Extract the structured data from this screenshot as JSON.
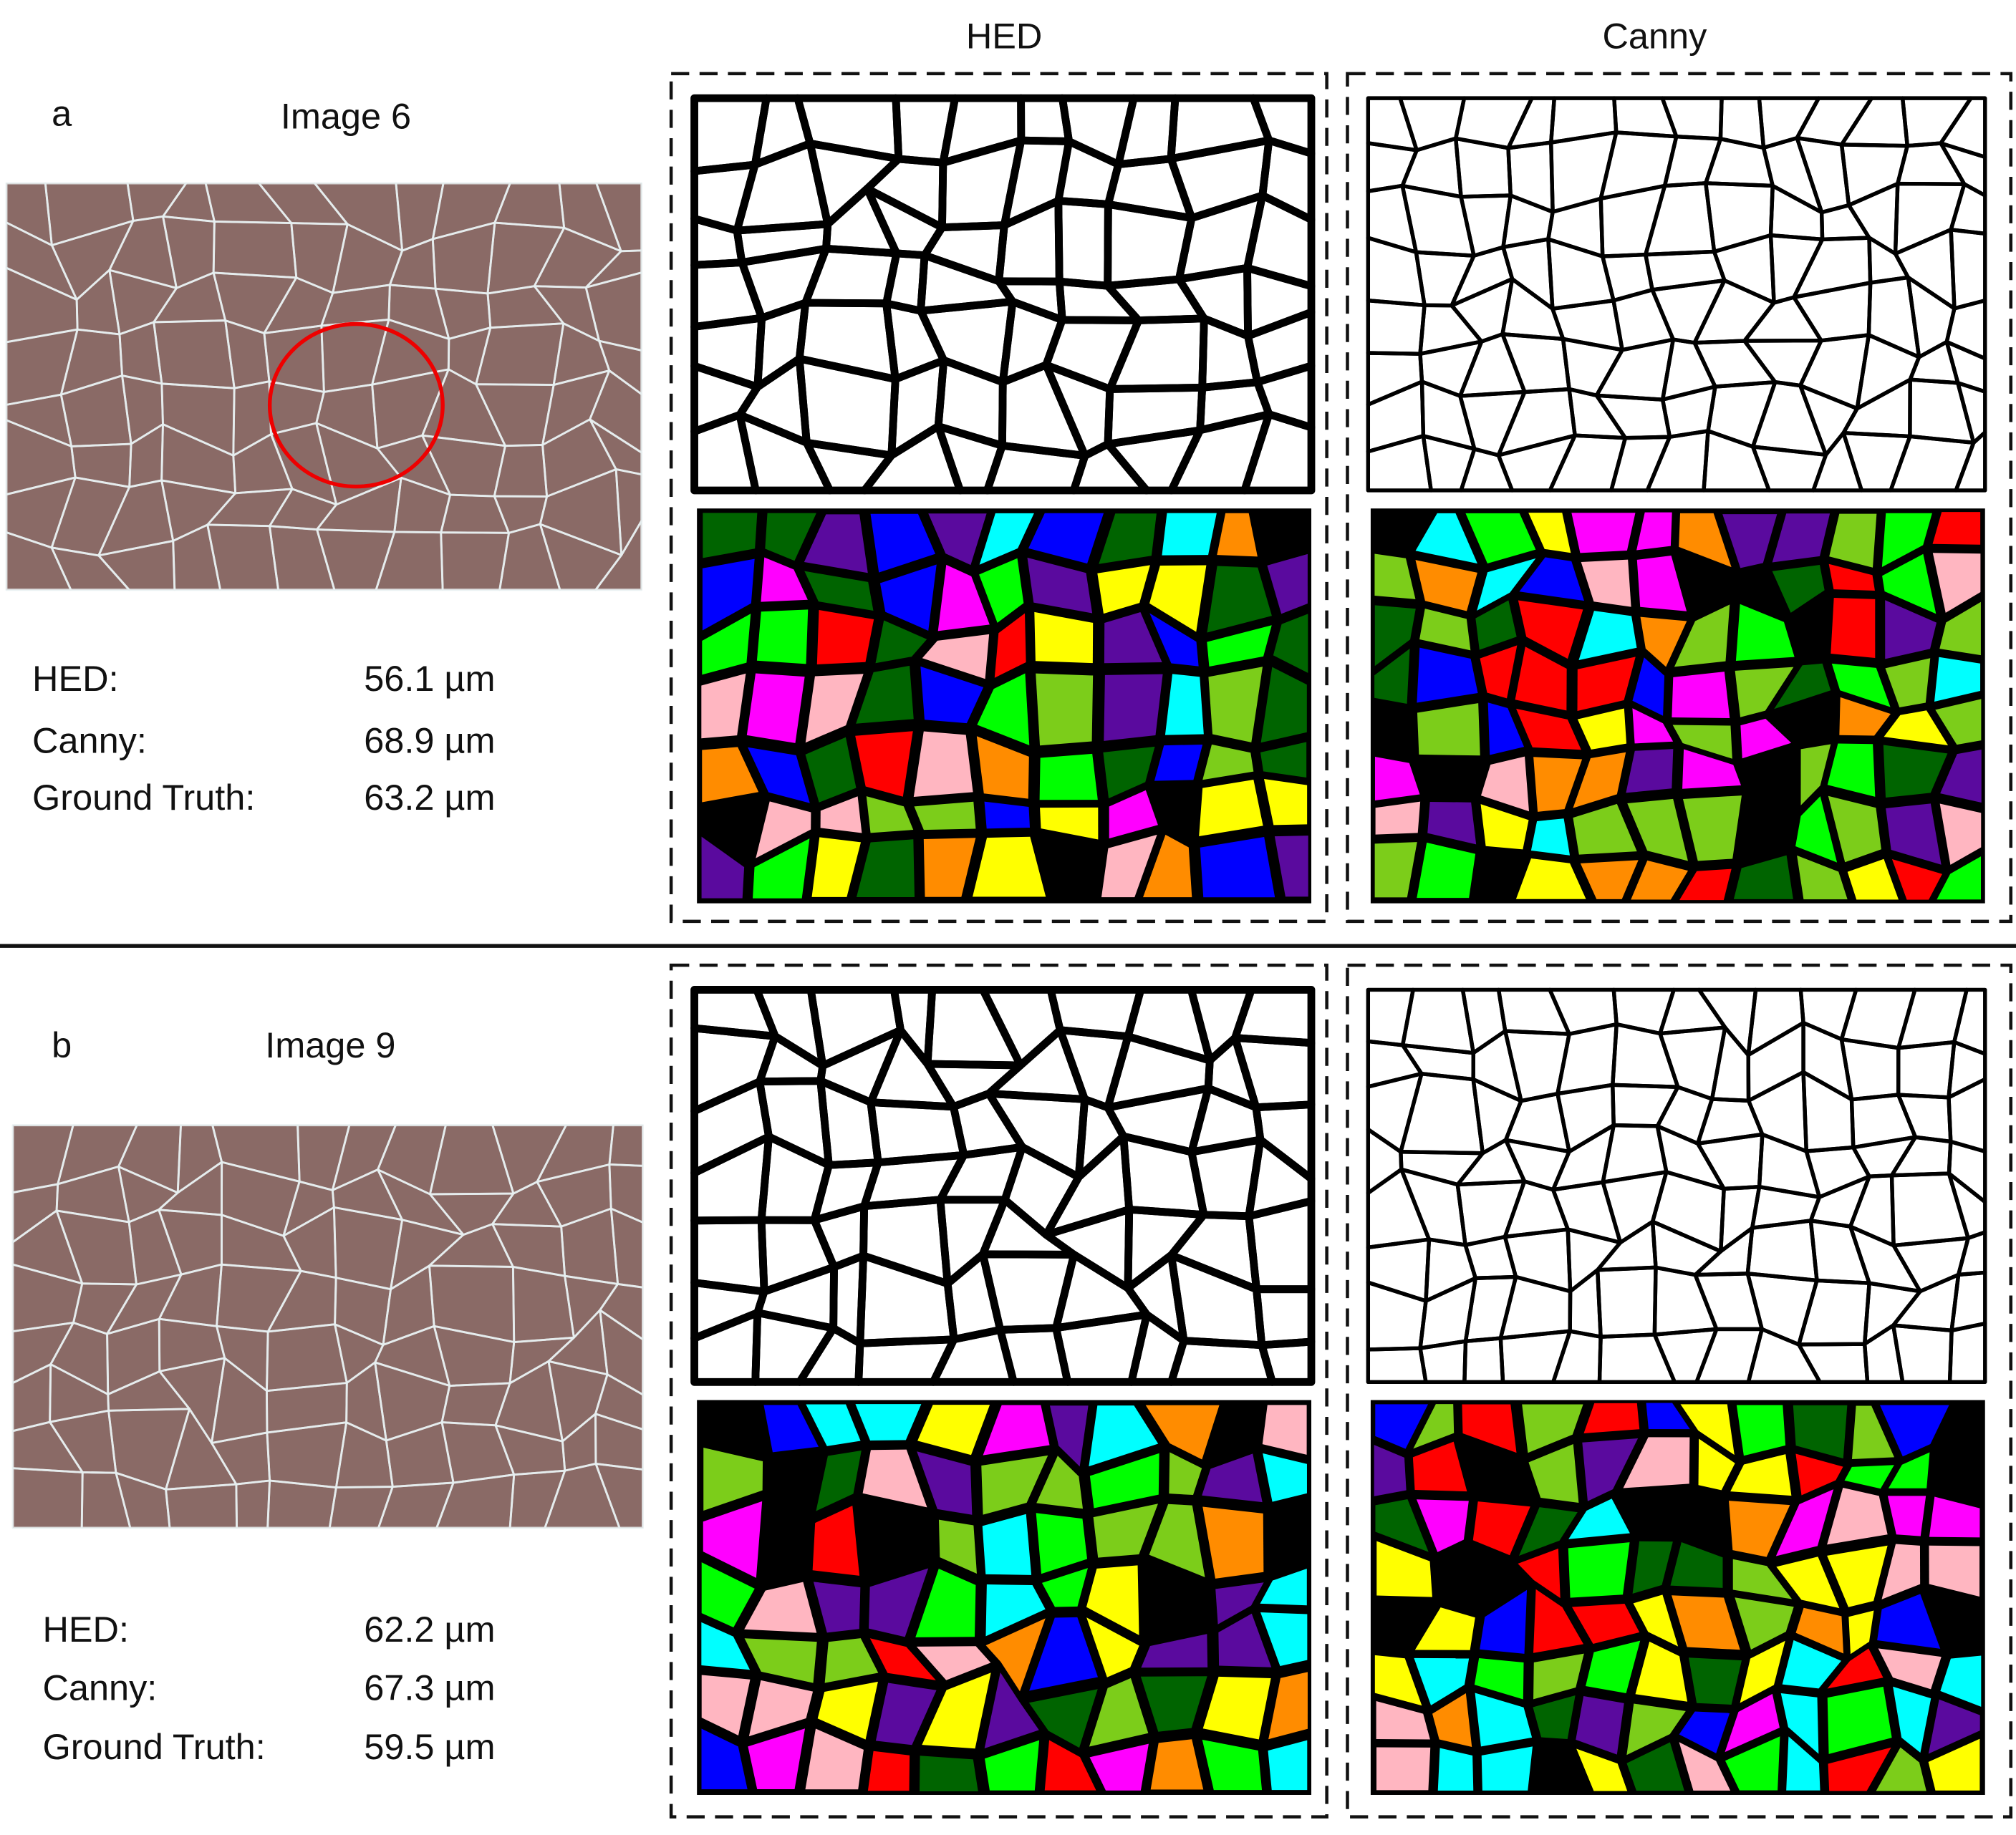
{
  "column_headers": [
    "HED",
    "Canny"
  ],
  "panels": [
    {
      "label": "a",
      "title": "Image 6",
      "metrics": [
        {
          "name": "HED:",
          "value": "56.1 µm"
        },
        {
          "name": "Canny:",
          "value": "68.9 µm"
        },
        {
          "name": "Ground Truth:",
          "value": "63.2 µm"
        }
      ]
    },
    {
      "label": "b",
      "title": "Image 9",
      "metrics": [
        {
          "name": "HED:",
          "value": "62.2 µm"
        },
        {
          "name": "Canny:",
          "value": "67.3 µm"
        },
        {
          "name": "Ground Truth:",
          "value": "59.5 µm"
        }
      ]
    }
  ]
}
